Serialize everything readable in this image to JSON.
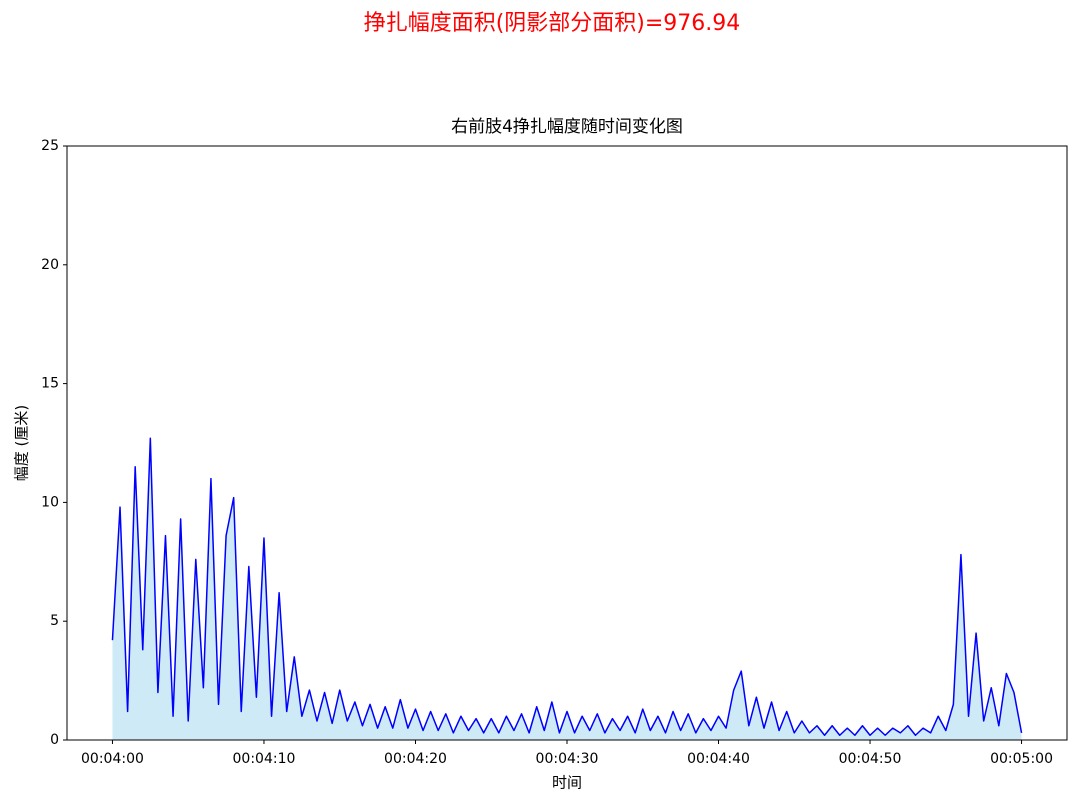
{
  "chart_data": {
    "type": "area",
    "suptitle": "挣扎幅度面积(阴影部分面积)=976.94",
    "title": "右前肢4挣扎幅度随时间变化图",
    "xlabel": "时间",
    "ylabel": "幅度 (厘米)",
    "color": "#0000ff",
    "fill_color": "#cdeaf6",
    "suptitle_color": "#ff0000",
    "x": [
      240,
      240.5,
      241,
      241.5,
      242,
      242.5,
      243,
      243.5,
      244,
      244.5,
      245,
      245.5,
      246,
      246.5,
      247,
      247.5,
      248,
      248.5,
      249,
      249.5,
      250,
      250.5,
      251,
      251.5,
      252,
      252.5,
      253,
      253.5,
      254,
      254.5,
      255,
      255.5,
      256,
      256.5,
      257,
      257.5,
      258,
      258.5,
      259,
      259.5,
      260,
      260.5,
      261,
      261.5,
      262,
      262.5,
      263,
      263.5,
      264,
      264.5,
      265,
      265.5,
      266,
      266.5,
      267,
      267.5,
      268,
      268.5,
      269,
      269.5,
      270,
      270.5,
      271,
      271.5,
      272,
      272.5,
      273,
      273.5,
      274,
      274.5,
      275,
      275.5,
      276,
      276.5,
      277,
      277.5,
      278,
      278.5,
      279,
      279.5,
      280,
      280.5,
      281,
      281.5,
      282,
      282.5,
      283,
      283.5,
      284,
      284.5,
      285,
      285.5,
      286,
      286.5,
      287,
      287.5,
      288,
      288.5,
      289,
      289.5,
      290,
      290.5,
      291,
      291.5,
      292,
      292.5,
      293,
      293.5,
      294,
      294.5,
      295,
      295.5,
      296,
      296.5,
      297,
      297.5,
      298,
      298.5,
      299,
      299.5,
      300
    ],
    "values": [
      4.2,
      9.8,
      1.2,
      11.5,
      3.8,
      12.7,
      2.0,
      8.6,
      1.0,
      9.3,
      0.8,
      7.6,
      2.2,
      11.0,
      1.5,
      8.6,
      10.2,
      1.2,
      7.3,
      1.8,
      8.5,
      1.0,
      6.2,
      1.2,
      3.5,
      1.0,
      2.1,
      0.8,
      2.0,
      0.7,
      2.1,
      0.8,
      1.6,
      0.6,
      1.5,
      0.5,
      1.4,
      0.5,
      1.7,
      0.5,
      1.3,
      0.4,
      1.2,
      0.4,
      1.1,
      0.3,
      1.0,
      0.4,
      0.9,
      0.3,
      0.9,
      0.3,
      1.0,
      0.4,
      1.1,
      0.3,
      1.4,
      0.4,
      1.6,
      0.3,
      1.2,
      0.3,
      1.0,
      0.4,
      1.1,
      0.3,
      0.9,
      0.4,
      1.0,
      0.3,
      1.3,
      0.4,
      1.0,
      0.3,
      1.2,
      0.4,
      1.1,
      0.3,
      0.9,
      0.4,
      1.0,
      0.5,
      2.1,
      2.9,
      0.6,
      1.8,
      0.5,
      1.6,
      0.4,
      1.2,
      0.3,
      0.8,
      0.3,
      0.6,
      0.2,
      0.6,
      0.2,
      0.5,
      0.2,
      0.6,
      0.2,
      0.5,
      0.2,
      0.5,
      0.3,
      0.6,
      0.2,
      0.5,
      0.3,
      1.0,
      0.4,
      1.5,
      7.8,
      1.0,
      4.5,
      0.8,
      2.2,
      0.6,
      2.8,
      2.0,
      0.3
    ],
    "xlim": [
      237,
      303
    ],
    "xticks": [
      {
        "value": 240,
        "label": "00:04:00"
      },
      {
        "value": 250,
        "label": "00:04:10"
      },
      {
        "value": 260,
        "label": "00:04:20"
      },
      {
        "value": 270,
        "label": "00:04:30"
      },
      {
        "value": 280,
        "label": "00:04:40"
      },
      {
        "value": 290,
        "label": "00:04:50"
      },
      {
        "value": 300,
        "label": "00:05:00"
      }
    ],
    "ylim": [
      0,
      25
    ],
    "yticks": [
      0,
      5,
      10,
      15,
      20,
      25
    ]
  }
}
